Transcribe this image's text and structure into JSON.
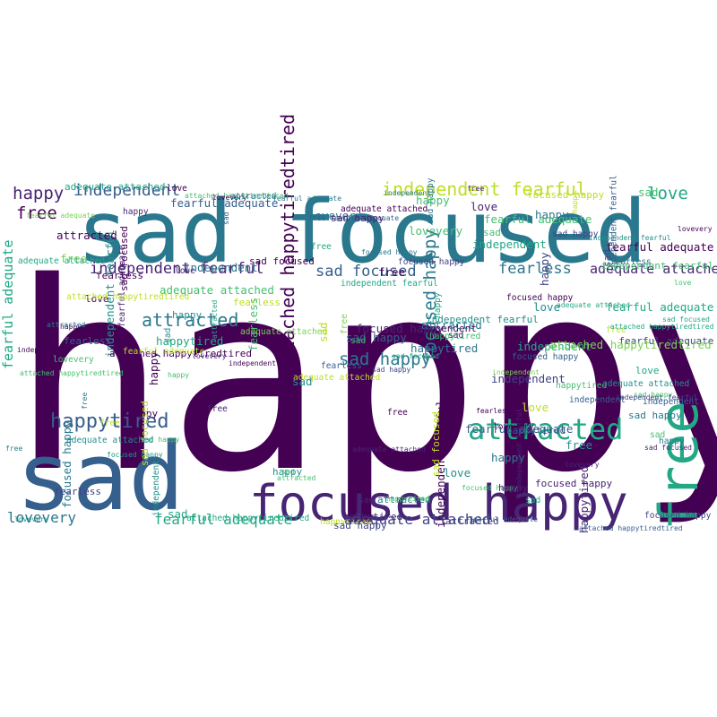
{
  "word_cloud": {
    "palette": [
      "#440154",
      "#482475",
      "#414487",
      "#355f8d",
      "#2a788e",
      "#21918c",
      "#22a884",
      "#44bf70",
      "#7ad151",
      "#bddf26"
    ],
    "words": [
      {
        "text": "happy"
      },
      {
        "text": "sad focused"
      },
      {
        "text": "sad"
      },
      {
        "text": "focused happy"
      },
      {
        "text": "free"
      },
      {
        "text": "attracted"
      },
      {
        "text": "happytired"
      },
      {
        "text": "independent fearful"
      },
      {
        "text": "independent fearful"
      },
      {
        "text": "happy"
      },
      {
        "text": "free"
      },
      {
        "text": "love"
      },
      {
        "text": "attached happytiredtired"
      },
      {
        "text": "focused happy"
      },
      {
        "text": "sad focused"
      },
      {
        "text": "fearless"
      },
      {
        "text": "adequate attached"
      },
      {
        "text": "fearful adequate"
      },
      {
        "text": "attracted"
      },
      {
        "text": "sad happy"
      },
      {
        "text": "lovevery"
      },
      {
        "text": "fearful adequate"
      },
      {
        "text": "adequate attached"
      },
      {
        "text": "independent"
      },
      {
        "text": "sad"
      },
      {
        "text": "independent"
      },
      {
        "text": "lovevery"
      },
      {
        "text": "sad focused"
      },
      {
        "text": "lovevery"
      },
      {
        "text": "adequate attached"
      },
      {
        "text": "fearful adequate"
      },
      {
        "text": "focused happy"
      },
      {
        "text": "independent fearful"
      },
      {
        "text": "attracted"
      },
      {
        "text": "happytired"
      },
      {
        "text": "fearless"
      },
      {
        "text": "sad happy"
      },
      {
        "text": "independent"
      },
      {
        "text": "focused happy"
      },
      {
        "text": "love"
      },
      {
        "text": "sad focused"
      },
      {
        "text": "attached happytiredtired"
      },
      {
        "text": "free fearful adequate"
      },
      {
        "text": "happytired"
      },
      {
        "text": "attached happytiredtired"
      },
      {
        "text": "focused happy"
      },
      {
        "text": "fearful adequate"
      },
      {
        "text": "independent fearful"
      },
      {
        "text": "adequate attached"
      },
      {
        "text": "sad happy"
      },
      {
        "text": "happy"
      },
      {
        "text": "free"
      },
      {
        "text": "sad"
      },
      {
        "text": "fearless"
      },
      {
        "text": "lovevery"
      },
      {
        "text": "attracted"
      },
      {
        "text": "sad happy"
      },
      {
        "text": "happytired"
      },
      {
        "text": "happy"
      },
      {
        "text": "love"
      },
      {
        "text": "free"
      },
      {
        "text": "sad"
      },
      {
        "text": "fearless"
      },
      {
        "text": "independent"
      },
      {
        "text": "lovevery"
      },
      {
        "text": "happy"
      },
      {
        "text": "sad happy"
      },
      {
        "text": "adequate attached"
      },
      {
        "text": "independent fearful"
      },
      {
        "text": "attracted"
      },
      {
        "text": "happytired"
      },
      {
        "text": "fearful adequate"
      },
      {
        "text": "attached happytiredtired"
      },
      {
        "text": "focused happy"
      },
      {
        "text": "sad focused"
      },
      {
        "text": "free"
      },
      {
        "text": "love"
      },
      {
        "text": "independent"
      },
      {
        "text": "lovevery"
      },
      {
        "text": "fearless"
      },
      {
        "text": "happy"
      },
      {
        "text": "independent fearful"
      },
      {
        "text": "sad focused"
      },
      {
        "text": "lovevery"
      },
      {
        "text": "fearful adequate"
      },
      {
        "text": "independent"
      },
      {
        "text": "attached happytiredtired"
      },
      {
        "text": "focused happy"
      },
      {
        "text": "adequate attached"
      },
      {
        "text": "sad happy"
      },
      {
        "text": "fearful adequate"
      },
      {
        "text": "happytired"
      },
      {
        "text": "sad"
      },
      {
        "text": "happy"
      },
      {
        "text": "free"
      },
      {
        "text": "love"
      },
      {
        "text": "sad happy"
      },
      {
        "text": "attracted"
      },
      {
        "text": "sad"
      },
      {
        "text": "fearless"
      },
      {
        "text": "independent"
      },
      {
        "text": "happytired"
      },
      {
        "text": "free"
      },
      {
        "text": "sad happy"
      },
      {
        "text": "attracted"
      },
      {
        "text": "focused happy"
      },
      {
        "text": "independent"
      },
      {
        "text": "happy"
      },
      {
        "text": "adequate attached"
      },
      {
        "text": "free"
      },
      {
        "text": "happytired"
      },
      {
        "text": "fearless"
      },
      {
        "text": "love"
      },
      {
        "text": "sad"
      },
      {
        "text": "attracted"
      },
      {
        "text": "independent fearful"
      },
      {
        "text": "sad focused"
      },
      {
        "text": "happy"
      },
      {
        "text": "sad happy"
      },
      {
        "text": "lovevery"
      },
      {
        "text": "fearful adequate"
      },
      {
        "text": "adequate attached"
      },
      {
        "text": "independent fearful"
      },
      {
        "text": "adequate attached"
      },
      {
        "text": "focused happy"
      },
      {
        "text": "attached happytiredtired"
      },
      {
        "text": "independent"
      },
      {
        "text": "free"
      },
      {
        "text": "happy"
      },
      {
        "text": "sad"
      },
      {
        "text": "love"
      },
      {
        "text": "lovevery"
      },
      {
        "text": "happy"
      },
      {
        "text": "independent"
      },
      {
        "text": "attached happytiredtired"
      },
      {
        "text": "love"
      },
      {
        "text": "free"
      },
      {
        "text": "happy"
      },
      {
        "text": "sad"
      },
      {
        "text": "happytired"
      },
      {
        "text": "independent fearful"
      },
      {
        "text": "happy"
      },
      {
        "text": "sad focused"
      },
      {
        "text": "lovevery"
      },
      {
        "text": "adequate attached"
      },
      {
        "text": "free"
      },
      {
        "text": "attracted"
      },
      {
        "text": "love"
      },
      {
        "text": "fearful adequate"
      },
      {
        "text": "independent"
      },
      {
        "text": "fearless"
      },
      {
        "text": "happy"
      },
      {
        "text": "sad"
      },
      {
        "text": "focused happy"
      },
      {
        "text": "fearful adequate"
      },
      {
        "text": "attracted"
      },
      {
        "text": "focused happy"
      },
      {
        "text": "adequate attached"
      },
      {
        "text": "free"
      },
      {
        "text": "sad"
      },
      {
        "text": "sad"
      },
      {
        "text": "independent"
      },
      {
        "text": "sad"
      },
      {
        "text": "free"
      },
      {
        "text": "happy"
      },
      {
        "text": "fearful adequate"
      },
      {
        "text": "independent"
      },
      {
        "text": "attached happytiredtired"
      },
      {
        "text": "independent fearful"
      },
      {
        "text": "happy"
      },
      {
        "text": "happy"
      },
      {
        "text": "adequate attached"
      },
      {
        "text": "fearful adequate"
      },
      {
        "text": "sad happy"
      },
      {
        "text": "love"
      },
      {
        "text": "fearful adequate"
      },
      {
        "text": "sad"
      },
      {
        "text": "sad"
      },
      {
        "text": "free"
      },
      {
        "text": "focused happy"
      },
      {
        "text": "sad focused"
      },
      {
        "text": "fearless"
      },
      {
        "text": "happytired"
      },
      {
        "text": "focused happy"
      },
      {
        "text": "attached happytiredtired"
      },
      {
        "text": "independent fearful"
      }
    ]
  }
}
